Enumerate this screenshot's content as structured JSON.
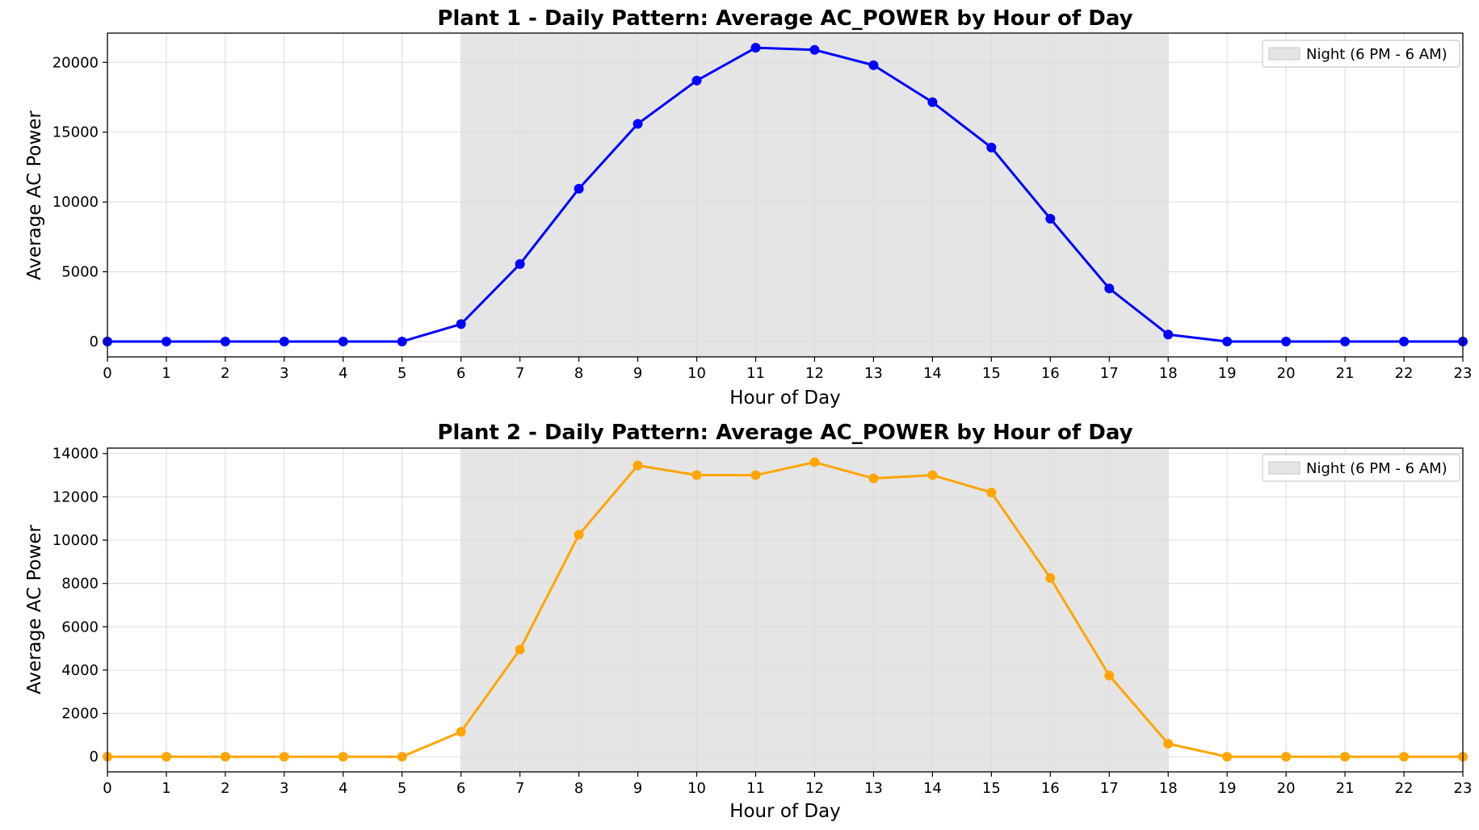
{
  "chart_data": [
    {
      "type": "line",
      "title": "Plant 1 - Daily Pattern: Average AC_POWER by Hour of Day",
      "xlabel": "Hour of Day",
      "ylabel": "Average AC Power",
      "x": [
        0,
        1,
        2,
        3,
        4,
        5,
        6,
        7,
        8,
        9,
        10,
        11,
        12,
        13,
        14,
        15,
        16,
        17,
        18,
        19,
        20,
        21,
        22,
        23
      ],
      "xlim": [
        0,
        23
      ],
      "ylim": [
        -1100,
        22100
      ],
      "yticks": [
        0,
        5000,
        10000,
        15000,
        20000
      ],
      "grid": true,
      "legend_position": "top-right",
      "series": [
        {
          "color": "#0000ff",
          "values": [
            0,
            0,
            0,
            0,
            0,
            0,
            1250,
            5550,
            10950,
            15600,
            18700,
            21050,
            20900,
            19800,
            17150,
            13900,
            8800,
            3800,
            500,
            0,
            0,
            0,
            0,
            0
          ]
        }
      ],
      "shaded_span": {
        "from": 6,
        "to": 18,
        "label": "Night (6 PM - 6 AM)",
        "color": "#d3d3d3"
      }
    },
    {
      "type": "line",
      "title": "Plant 2 - Daily Pattern: Average AC_POWER by Hour of Day",
      "xlabel": "Hour of Day",
      "ylabel": "Average AC Power",
      "x": [
        0,
        1,
        2,
        3,
        4,
        5,
        6,
        7,
        8,
        9,
        10,
        11,
        12,
        13,
        14,
        15,
        16,
        17,
        18,
        19,
        20,
        21,
        22,
        23
      ],
      "xlim": [
        0,
        23
      ],
      "ylim": [
        -700,
        14250
      ],
      "yticks": [
        0,
        2000,
        4000,
        6000,
        8000,
        10000,
        12000,
        14000
      ],
      "grid": true,
      "legend_position": "top-right",
      "series": [
        {
          "color": "#ffa500",
          "values": [
            0,
            0,
            0,
            0,
            0,
            0,
            1150,
            4950,
            10250,
            13450,
            13000,
            13000,
            13600,
            12850,
            13000,
            12200,
            8250,
            3750,
            600,
            0,
            0,
            0,
            0,
            0
          ]
        }
      ],
      "shaded_span": {
        "from": 6,
        "to": 18,
        "label": "Night (6 PM - 6 AM)",
        "color": "#d3d3d3"
      }
    }
  ]
}
